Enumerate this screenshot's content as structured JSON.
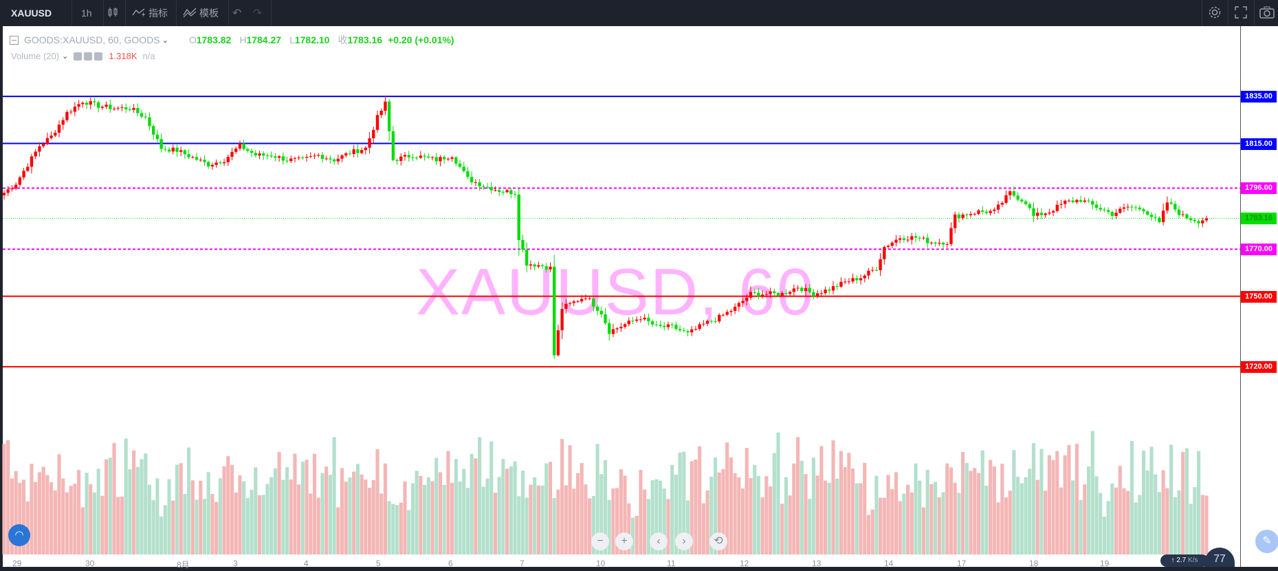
{
  "toolbar": {
    "symbol": "XAUUSD",
    "interval": "1h",
    "indicators_label": "指标",
    "templates_label": "模板"
  },
  "legend": {
    "series_name": "GOODS:XAUUSD, 60, GOODS",
    "o_label": "O",
    "o_value": "1783.82",
    "h_label": "H",
    "h_value": "1784.27",
    "l_label": "L",
    "l_value": "1782.10",
    "c_label": "收",
    "c_value": "1783.16",
    "change": "+0.20 (+0.01%)",
    "volume_label": "Volume (20)",
    "volume_value": "1.318K",
    "volume_na": "n/a"
  },
  "watermark": "XAUUSD, 60",
  "levels": [
    {
      "price": 1835,
      "label": "1835.00",
      "color": "#0000ff",
      "style": "solid"
    },
    {
      "price": 1815,
      "label": "1815.00",
      "color": "#0000ff",
      "style": "solid"
    },
    {
      "price": 1796,
      "label": "1796.00",
      "color": "#ff00ff",
      "style": "dashed"
    },
    {
      "price": 1783.16,
      "label": "1783.16",
      "color": "#00e600",
      "style": "dotted"
    },
    {
      "price": 1770,
      "label": "1770.00",
      "color": "#ff00ff",
      "style": "dashed"
    },
    {
      "price": 1750,
      "label": "1750.00",
      "color": "#ff0000",
      "style": "solid"
    },
    {
      "price": 1720,
      "label": "1720.00",
      "color": "#ff0000",
      "style": "solid"
    }
  ],
  "x_ticks": [
    "29",
    "30",
    "8月",
    "3",
    "4",
    "5",
    "6",
    "7",
    "10",
    "11",
    "12",
    "13",
    "14",
    "17",
    "18",
    "19"
  ],
  "footer": {
    "speed": "2.7",
    "speed_unit": "K/s",
    "badge": "77"
  },
  "chart_data": {
    "type": "candlestick",
    "price_anchors": [
      [
        0,
        1794
      ],
      [
        3,
        1798
      ],
      [
        6,
        1806
      ],
      [
        9,
        1814
      ],
      [
        12,
        1818
      ],
      [
        16,
        1828
      ],
      [
        20,
        1833
      ],
      [
        24,
        1831
      ],
      [
        28,
        1830
      ],
      [
        32,
        1830
      ],
      [
        36,
        1826
      ],
      [
        40,
        1813
      ],
      [
        44,
        1812
      ],
      [
        48,
        1809
      ],
      [
        52,
        1806
      ],
      [
        56,
        1808
      ],
      [
        60,
        1814
      ],
      [
        64,
        1810
      ],
      [
        68,
        1810
      ],
      [
        72,
        1808
      ],
      [
        76,
        1808
      ],
      [
        80,
        1810
      ],
      [
        84,
        1808
      ],
      [
        88,
        1811
      ],
      [
        92,
        1813
      ],
      [
        95,
        1826
      ],
      [
        97,
        1832
      ],
      [
        99,
        1808
      ],
      [
        104,
        1810
      ],
      [
        110,
        1808
      ],
      [
        114,
        1810
      ],
      [
        118,
        1800
      ],
      [
        122,
        1797
      ],
      [
        126,
        1795
      ],
      [
        130,
        1794
      ],
      [
        131,
        1775
      ],
      [
        133,
        1764
      ],
      [
        137,
        1763
      ],
      [
        139,
        1762
      ],
      [
        140,
        1725
      ],
      [
        142,
        1745
      ],
      [
        148,
        1750
      ],
      [
        152,
        1743
      ],
      [
        154,
        1735
      ],
      [
        158,
        1738
      ],
      [
        162,
        1741
      ],
      [
        166,
        1737
      ],
      [
        170,
        1737
      ],
      [
        174,
        1734
      ],
      [
        178,
        1738
      ],
      [
        182,
        1741
      ],
      [
        186,
        1745
      ],
      [
        190,
        1751
      ],
      [
        194,
        1751
      ],
      [
        198,
        1751
      ],
      [
        202,
        1754
      ],
      [
        206,
        1751
      ],
      [
        210,
        1753
      ],
      [
        214,
        1756
      ],
      [
        218,
        1758
      ],
      [
        222,
        1762
      ],
      [
        224,
        1771
      ],
      [
        228,
        1775
      ],
      [
        232,
        1775
      ],
      [
        236,
        1773
      ],
      [
        240,
        1773
      ],
      [
        242,
        1784
      ],
      [
        248,
        1786
      ],
      [
        252,
        1786
      ],
      [
        256,
        1794
      ],
      [
        260,
        1790
      ],
      [
        262,
        1784
      ],
      [
        266,
        1786
      ],
      [
        270,
        1790
      ],
      [
        274,
        1791
      ],
      [
        278,
        1788
      ],
      [
        282,
        1785
      ],
      [
        286,
        1788
      ],
      [
        290,
        1787
      ],
      [
        294,
        1781
      ],
      [
        296,
        1790
      ],
      [
        300,
        1784
      ],
      [
        304,
        1782
      ],
      [
        306,
        1783.16
      ]
    ],
    "volume_by_hour": [
      1.7,
      1.9,
      1.4,
      1.6,
      1.9,
      1.5,
      1.3,
      1.8,
      1.6,
      1.9,
      1.7,
      1.5,
      1.7,
      1.2,
      1.8,
      1.5,
      1.6,
      1.9,
      1.4,
      1.7,
      1.3,
      1.5,
      1.8,
      1.6,
      1.9,
      1.2,
      1.7,
      1.5,
      1.8,
      1.4,
      1.6,
      1.9,
      1.3,
      1.7,
      1.5,
      1.8,
      1.6,
      1.9,
      1.2,
      1.4,
      1.0,
      0.9,
      1.6,
      1.2,
      1.4,
      1.7,
      1.5,
      1.9,
      1.3,
      1.5,
      1.7,
      1.4,
      1.8,
      1.6,
      1.2,
      1.5,
      1.7,
      1.9,
      1.4,
      1.6
    ],
    "ylim": [
      1706,
      1845
    ],
    "hours": 307,
    "last_price": 1783.16
  },
  "colors": {
    "up": "#ff0000",
    "down": "#00dd00",
    "vol_up": "#f4b6b6",
    "vol_down": "#b3e0cc"
  }
}
